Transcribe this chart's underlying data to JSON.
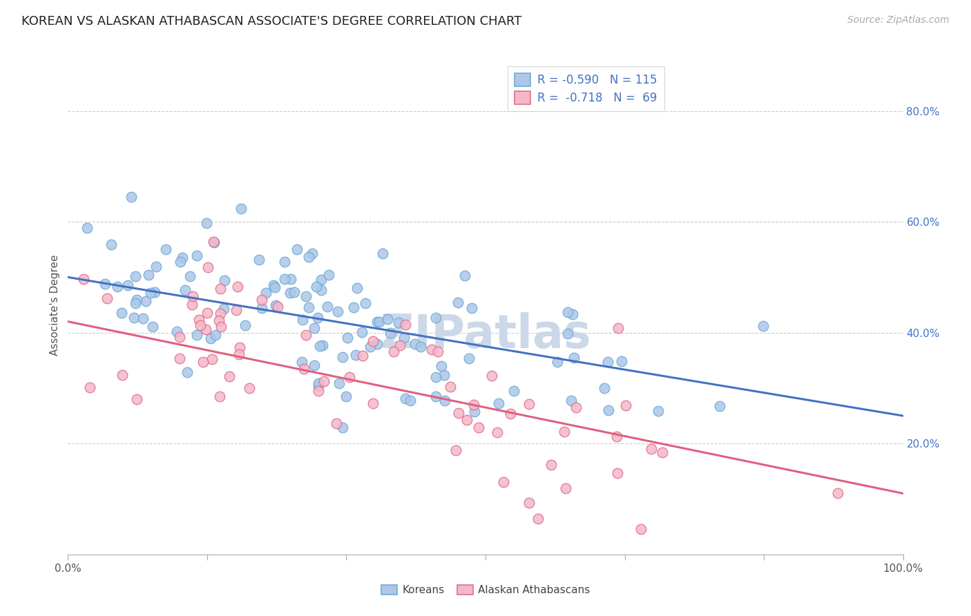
{
  "title": "KOREAN VS ALASKAN ATHABASCAN ASSOCIATE'S DEGREE CORRELATION CHART",
  "source": "Source: ZipAtlas.com",
  "ylabel": "Associate's Degree",
  "watermark": "ZIPatlas",
  "legend_labels": [
    "Koreans",
    "Alaskan Athabascans"
  ],
  "blue_R": -0.59,
  "blue_N": 115,
  "pink_R": -0.718,
  "pink_N": 69,
  "blue_color_face": "#aec6e8",
  "blue_color_edge": "#6aaed6",
  "pink_color_face": "#f4b8c8",
  "pink_color_edge": "#e07090",
  "blue_line_color": "#4472c4",
  "pink_line_color": "#e06080",
  "ytick_labels": [
    "20.0%",
    "40.0%",
    "60.0%",
    "80.0%"
  ],
  "ytick_values": [
    0.2,
    0.4,
    0.6,
    0.8
  ],
  "xlim": [
    0.0,
    1.0
  ],
  "ylim": [
    0.0,
    0.9
  ],
  "background_color": "#ffffff",
  "grid_color": "#cccccc",
  "title_fontsize": 13,
  "axis_label_fontsize": 11,
  "tick_fontsize": 11,
  "source_fontsize": 10,
  "watermark_fontsize": 48,
  "watermark_color": "#ccd8e8",
  "blue_intercept": 0.5,
  "blue_slope": -0.25,
  "pink_intercept": 0.42,
  "pink_slope": -0.31
}
